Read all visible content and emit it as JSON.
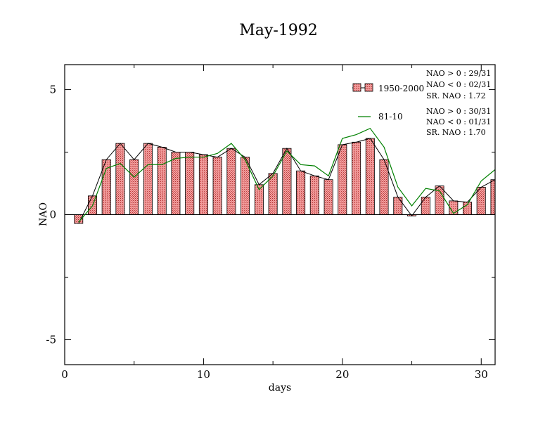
{
  "chart_data": {
    "type": "bar",
    "title": "May-1992",
    "xlabel": "days",
    "ylabel": "NAO",
    "xlim": [
      0,
      31
    ],
    "ylim": [
      -6,
      6
    ],
    "xticks": [
      0,
      10,
      20,
      30
    ],
    "xtick_labels": [
      "0",
      "10",
      "20",
      "30"
    ],
    "yticks": [
      -5,
      0,
      5
    ],
    "ytick_labels": [
      "-5",
      "0",
      "5"
    ],
    "grid": false,
    "legend_placement": "top-right",
    "x": [
      1,
      2,
      3,
      4,
      5,
      6,
      7,
      8,
      9,
      10,
      11,
      12,
      13,
      14,
      15,
      16,
      17,
      18,
      19,
      20,
      21,
      22,
      23,
      24,
      25,
      26,
      27,
      28,
      29,
      30,
      31
    ],
    "series": [
      {
        "name": "1950-2000",
        "kind": "bar",
        "color": "#e06666",
        "values": [
          -0.35,
          0.75,
          2.2,
          2.85,
          2.2,
          2.85,
          2.7,
          2.5,
          2.5,
          2.4,
          2.3,
          2.65,
          2.3,
          1.2,
          1.65,
          2.65,
          1.75,
          1.55,
          1.4,
          2.8,
          2.9,
          3.05,
          2.2,
          0.7,
          -0.05,
          0.7,
          1.15,
          0.55,
          0.5,
          1.1,
          1.4
        ]
      },
      {
        "name": "81-10",
        "kind": "line",
        "color": "#008000",
        "values": [
          -0.3,
          0.35,
          1.85,
          2.05,
          1.5,
          2.0,
          2.0,
          2.25,
          2.3,
          2.3,
          2.45,
          2.85,
          2.2,
          1.0,
          1.55,
          2.55,
          2.0,
          1.95,
          1.55,
          3.05,
          3.2,
          3.45,
          2.7,
          1.1,
          0.35,
          1.05,
          0.95,
          0.05,
          0.4,
          1.35,
          1.8
        ]
      }
    ],
    "annotations": [
      [
        "NAO > 0 : 29/31",
        "NAO < 0 : 02/31",
        "SR. NAO :  1.72"
      ],
      [
        "NAO > 0 : 30/31",
        "NAO < 0 : 01/31",
        "SR. NAO :  1.70"
      ]
    ]
  }
}
